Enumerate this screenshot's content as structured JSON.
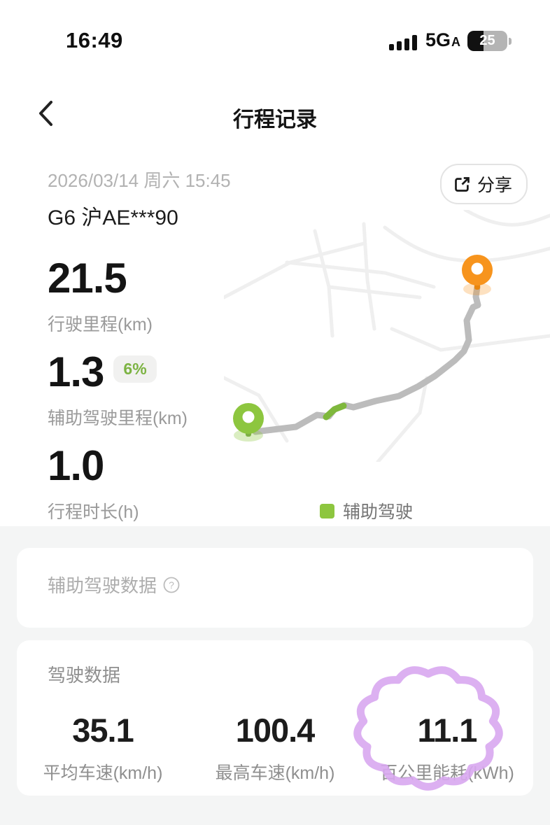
{
  "status_bar": {
    "time": "16:49",
    "network": "5G",
    "network_sub": "A",
    "battery_percent": "25"
  },
  "header": {
    "title": "行程记录"
  },
  "trip": {
    "datetime": "2026/03/14 周六 15:45",
    "vehicle": "G6 沪AE***90",
    "share_label": "分享"
  },
  "stats": [
    {
      "value": "21.5",
      "label": "行驶里程(km)"
    },
    {
      "value": "1.3",
      "badge": "6%",
      "label": "辅助驾驶里程(km)"
    },
    {
      "value": "1.0",
      "label": "行程时长(h)"
    }
  ],
  "map": {
    "legend_label": "辅助驾驶",
    "route_color": "#bcbcbc",
    "assist_color": "#7fb83d",
    "start_pin_color": "#8dc63f",
    "end_pin_color": "#f7941d"
  },
  "sections": {
    "assist_title": "辅助驾驶数据",
    "driving_title": "驾驶数据"
  },
  "driving_stats": [
    {
      "value": "35.1",
      "label": "平均车速(km/h)"
    },
    {
      "value": "100.4",
      "label": "最高车速(km/h)"
    },
    {
      "value": "11.1",
      "label": "百公里能耗(kWh)",
      "highlighted": true
    }
  ],
  "colors": {
    "accent_green": "#7cb342",
    "annotation_purple": "#d8a7f0"
  }
}
